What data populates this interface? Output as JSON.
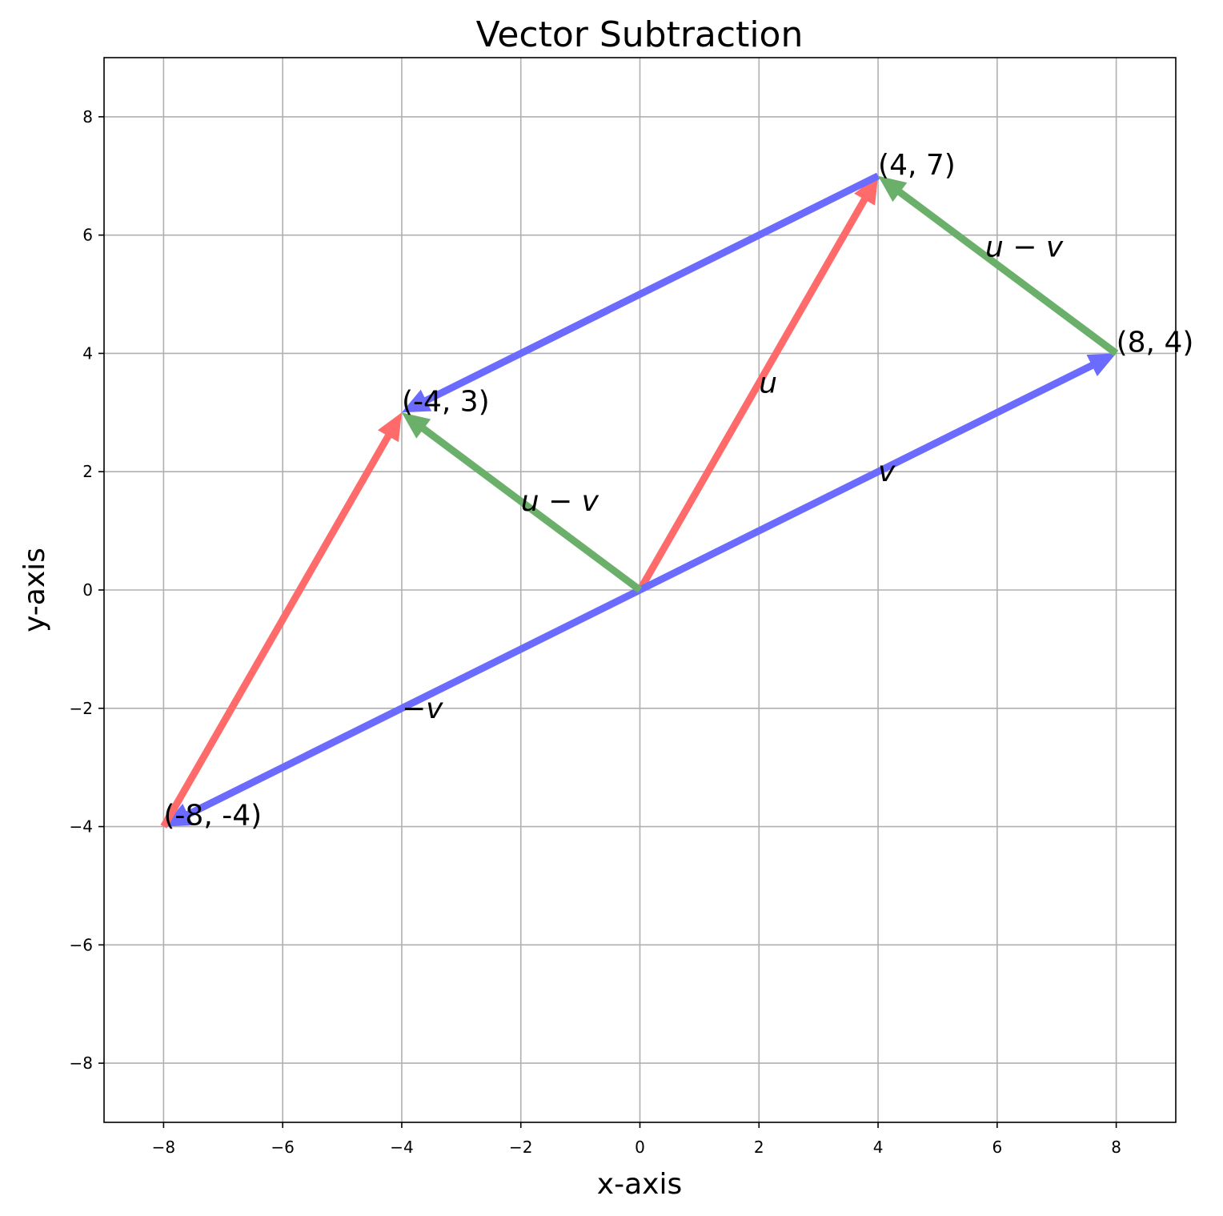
{
  "chart_data": {
    "type": "quiver",
    "title": "Vector Subtraction",
    "xlabel": "x-axis",
    "ylabel": "y-axis",
    "xlim": [
      -9,
      9
    ],
    "ylim": [
      -9,
      9
    ],
    "grid": true,
    "xticks": [
      -8,
      -6,
      -4,
      -2,
      0,
      2,
      4,
      6,
      8
    ],
    "yticks": [
      -8,
      -6,
      -4,
      -2,
      0,
      2,
      4,
      6,
      8
    ],
    "xtick_labels": [
      "−8",
      "−6",
      "−4",
      "−2",
      "0",
      "2",
      "4",
      "6",
      "8"
    ],
    "ytick_labels": [
      "−8",
      "−6",
      "−4",
      "−2",
      "0",
      "2",
      "4",
      "6",
      "8"
    ],
    "colors": {
      "u": "#ff6b6b",
      "v": "#6b6bff",
      "u_minus_v": "#6ab06a"
    },
    "vectors": [
      {
        "id": "u",
        "from": [
          0,
          0
        ],
        "to": [
          4,
          7
        ],
        "color_key": "u"
      },
      {
        "id": "v",
        "from": [
          0,
          0
        ],
        "to": [
          8,
          4
        ],
        "color_key": "v"
      },
      {
        "id": "neg-v",
        "from": [
          0,
          0
        ],
        "to": [
          -8,
          -4
        ],
        "color_key": "v"
      },
      {
        "id": "u-shifted",
        "from": [
          -8,
          -4
        ],
        "to": [
          -4,
          3
        ],
        "color_key": "u"
      },
      {
        "id": "v-shifted-back",
        "from": [
          4,
          7
        ],
        "to": [
          -4,
          3
        ],
        "color_key": "v"
      },
      {
        "id": "u-minus-v",
        "from": [
          0,
          0
        ],
        "to": [
          -4,
          3
        ],
        "color_key": "u_minus_v"
      },
      {
        "id": "u-minus-v-shifted",
        "from": [
          8,
          4
        ],
        "to": [
          4,
          7
        ],
        "color_key": "u_minus_v"
      }
    ],
    "point_labels": [
      {
        "text": "(4, 7)",
        "x": 4,
        "y": 7
      },
      {
        "text": "(8, 4)",
        "x": 8,
        "y": 4
      },
      {
        "text": "(-4, 3)",
        "x": -4,
        "y": 3
      },
      {
        "text": "(-8, -4)",
        "x": -8,
        "y": -4
      }
    ],
    "vector_labels": [
      {
        "text": "u",
        "x": 2,
        "y": 3.5
      },
      {
        "text": "v",
        "x": 4,
        "y": 2
      },
      {
        "text": "−v",
        "x": -4,
        "y": -2
      },
      {
        "text": "u − v",
        "x": -2,
        "y": 1.5
      },
      {
        "text": "u − v",
        "x": 5.8,
        "y": 5.8
      }
    ]
  }
}
